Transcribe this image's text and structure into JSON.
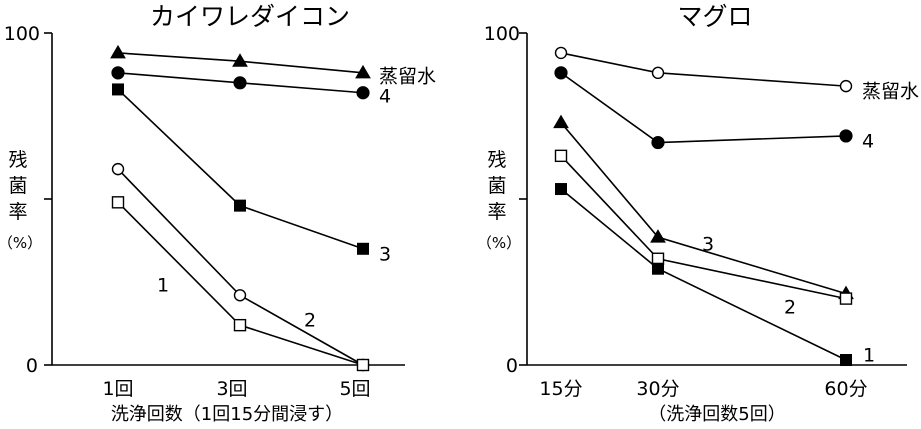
{
  "chart_data": [
    {
      "type": "line",
      "title": "カイワレダイコン",
      "xlabel": "洗浄回数（1回15分間浸す）",
      "ylabel": "残菌率",
      "yunit": "（%）",
      "ylim": [
        0,
        100
      ],
      "yticks": [
        "0",
        "100"
      ],
      "categories": [
        "1回",
        "3回",
        "5回"
      ],
      "series": [
        {
          "name": "蒸留水",
          "marker": "filled-triangle",
          "values": [
            94,
            91.5,
            88
          ]
        },
        {
          "name": "4",
          "marker": "filled-circle",
          "values": [
            88,
            85,
            82
          ]
        },
        {
          "name": "3",
          "marker": "filled-square",
          "values": [
            83,
            48,
            35
          ]
        },
        {
          "name": "2",
          "marker": "open-circle",
          "values": [
            59,
            21,
            0
          ]
        },
        {
          "name": "1",
          "marker": "open-square",
          "values": [
            49,
            12,
            0
          ]
        }
      ]
    },
    {
      "type": "line",
      "title": "マグロ",
      "xlabel": "（洗浄回数5回）",
      "ylabel": "残菌率",
      "yunit": "（%）",
      "ylim": [
        0,
        100
      ],
      "yticks": [
        "0",
        "100"
      ],
      "categories": [
        "15分",
        "30分",
        "60分"
      ],
      "series": [
        {
          "name": "蒸留水",
          "marker": "open-circle",
          "values": [
            94,
            88,
            84
          ]
        },
        {
          "name": "4",
          "marker": "filled-circle",
          "values": [
            88,
            67,
            69
          ]
        },
        {
          "name": "3",
          "marker": "filled-triangle",
          "values": [
            73,
            38.5,
            21.5
          ]
        },
        {
          "name": "2",
          "marker": "open-square",
          "values": [
            63,
            32,
            20
          ]
        },
        {
          "name": "1",
          "marker": "filled-square",
          "values": [
            53,
            29,
            1.5
          ]
        }
      ]
    }
  ]
}
